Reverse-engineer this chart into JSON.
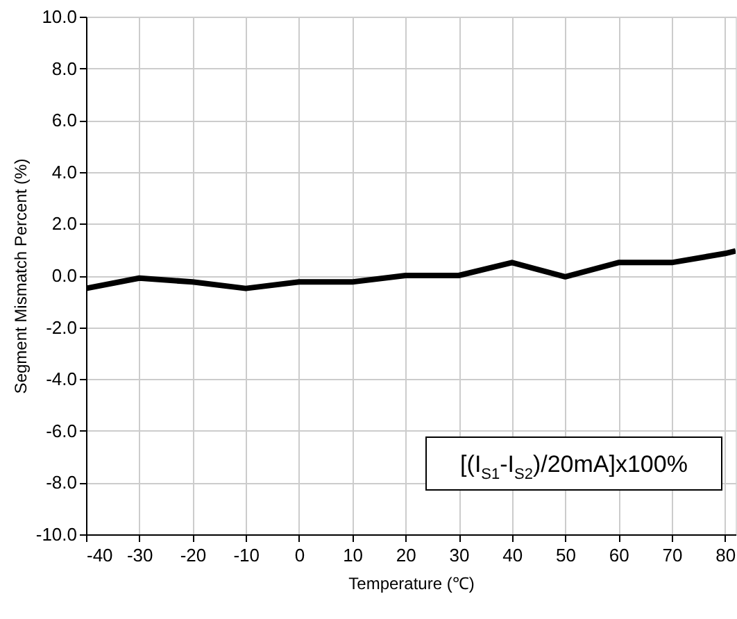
{
  "chart_data": {
    "type": "line",
    "xlabel": "Temperature (℃)",
    "ylabel": "Segment Mismatch Percent (%)",
    "x": [
      -40,
      -30,
      -20,
      -10,
      0,
      10,
      20,
      30,
      40,
      50,
      60,
      70,
      80,
      82
    ],
    "series": [
      {
        "color": "#000000",
        "values": [
          -0.5,
          -0.1,
          -0.25,
          -0.5,
          -0.25,
          -0.25,
          0.0,
          0.0,
          0.5,
          -0.05,
          0.5,
          0.5,
          0.85,
          0.95
        ]
      }
    ],
    "xlim": [
      -40,
      82
    ],
    "xticks": [
      -40,
      -30,
      -20,
      -10,
      0,
      10,
      20,
      30,
      40,
      50,
      60,
      70,
      80
    ],
    "ylim": [
      -10,
      10
    ],
    "yticks": [
      {
        "value": -10,
        "label": "-10.0"
      },
      {
        "value": -8,
        "label": "-8.0"
      },
      {
        "value": -6,
        "label": "-6.0"
      },
      {
        "value": -4,
        "label": "-4.0"
      },
      {
        "value": -2,
        "label": "-2.0"
      },
      {
        "value": 0,
        "label": "0.0"
      },
      {
        "value": 2,
        "label": "2.0"
      },
      {
        "value": 4,
        "label": "4.0"
      },
      {
        "value": 6,
        "label": "6.0"
      },
      {
        "value": 8,
        "label": "8.0"
      },
      {
        "value": 10,
        "label": "10.0"
      }
    ],
    "annotations": [
      "[(I$_{S1}$-I$_{S2}$)/20mA]x100%"
    ],
    "grid": true,
    "marker": "none",
    "line_style": "solid"
  }
}
